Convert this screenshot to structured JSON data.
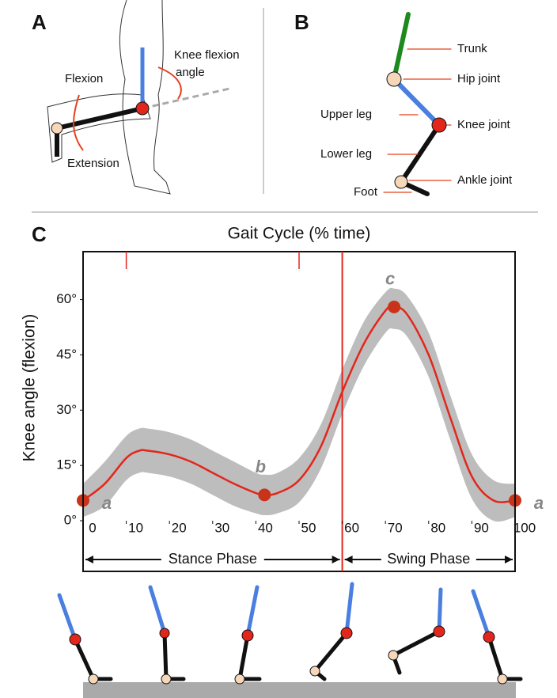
{
  "panels": {
    "A": {
      "label": "A",
      "flexion": "Flexion",
      "extension": "Extension",
      "angle_label": [
        "Knee flexion",
        "angle"
      ]
    },
    "B": {
      "label": "B",
      "parts": [
        "Trunk",
        "Hip joint",
        "Upper leg",
        "Knee joint",
        "Lower leg",
        "Ankle joint",
        "Foot"
      ]
    }
  },
  "chart_data": {
    "type": "line",
    "panel_label": "C",
    "title": "Gait Cycle (% time)",
    "y_label": "Knee angle (flexion)",
    "x": [
      0,
      5,
      10,
      13,
      15,
      20,
      25,
      30,
      35,
      40,
      42,
      45,
      50,
      55,
      60,
      65,
      70,
      72,
      75,
      80,
      85,
      90,
      95,
      100
    ],
    "series": [
      {
        "color": "#e3261c",
        "values": [
          5.5,
          10,
          17,
          19,
          19,
          18,
          16,
          13,
          10,
          7.5,
          7,
          7.5,
          11,
          20,
          35,
          48,
          57,
          58,
          56,
          45,
          28,
          12,
          5.5,
          5.5
        ]
      }
    ],
    "band": {
      "color": "#bdbdbd",
      "upper": [
        10,
        16,
        23,
        25,
        25,
        24,
        22,
        19,
        16,
        13,
        12.5,
        13,
        17,
        26,
        41,
        54,
        62,
        63,
        61,
        51,
        34,
        18,
        11,
        10
      ],
      "lower": [
        1,
        4,
        11,
        13,
        13,
        12,
        10,
        7,
        4,
        2,
        1.5,
        2,
        5,
        14,
        29,
        42,
        51,
        52,
        50,
        39,
        22,
        6,
        0,
        1
      ]
    },
    "points": {
      "color": "#c8331a",
      "x": [
        0,
        42,
        72,
        100
      ],
      "y": [
        5.5,
        7,
        58,
        5.5
      ],
      "labels": [
        "a",
        "b",
        "c",
        "a"
      ]
    },
    "xlim": [
      0,
      100
    ],
    "ylim": [
      0,
      73
    ],
    "xticks": [
      0,
      10,
      20,
      30,
      40,
      50,
      60,
      70,
      80,
      90,
      100
    ],
    "yticks": [
      {
        "value": 0,
        "label": "0°"
      },
      {
        "value": 15,
        "label": "15°"
      },
      {
        "value": 30,
        "label": "30°"
      },
      {
        "value": 45,
        "label": "45°"
      },
      {
        "value": 60,
        "label": "60°"
      }
    ],
    "phase_boundary": 60,
    "markers": [
      10,
      50
    ],
    "phases": [
      "Stance Phase",
      "Swing Phase"
    ]
  }
}
